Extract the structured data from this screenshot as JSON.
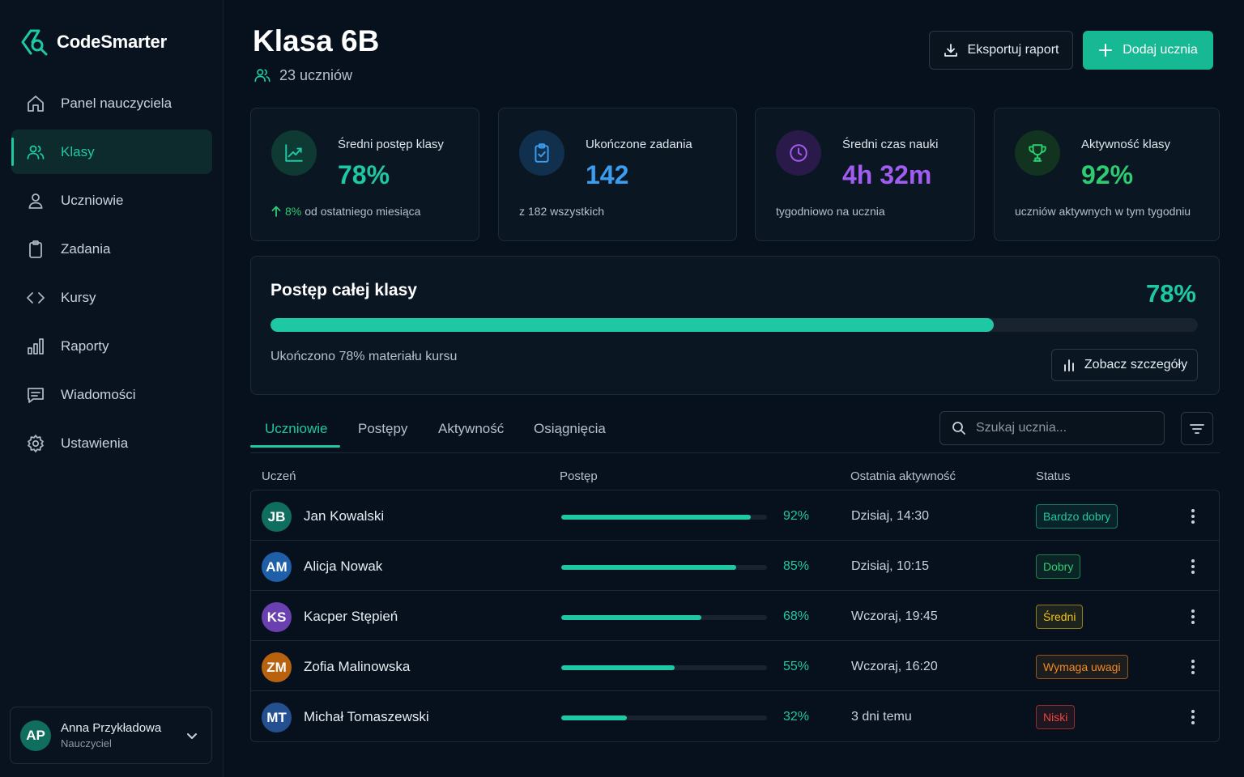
{
  "app": {
    "name": "CodeSmarter"
  },
  "sidebar": {
    "items": [
      {
        "label": "Panel nauczyciela",
        "icon": "home-icon"
      },
      {
        "label": "Klasy",
        "icon": "users-icon",
        "active": true
      },
      {
        "label": "Uczniowie",
        "icon": "user-icon"
      },
      {
        "label": "Zadania",
        "icon": "clipboard-icon"
      },
      {
        "label": "Kursy",
        "icon": "code-icon"
      },
      {
        "label": "Raporty",
        "icon": "bar-chart-icon"
      },
      {
        "label": "Wiadomości",
        "icon": "message-icon"
      },
      {
        "label": "Ustawienia",
        "icon": "gear-icon"
      }
    ],
    "user": {
      "initials": "AP",
      "name": "Anna Przykładowa",
      "role": "Nauczyciel"
    }
  },
  "header": {
    "title": "Klasa 6B",
    "student_count": "23 uczniów",
    "export_label": "Eksportuj raport",
    "add_label": "Dodaj ucznia"
  },
  "stats": [
    {
      "label": "Średni postęp klasy",
      "value": "78%",
      "delta": "8%",
      "foot": "od ostatniego miesiąca",
      "color": "#1fc8a4",
      "icon": "trend-up-icon"
    },
    {
      "label": "Ukończone zadania",
      "value": "142",
      "foot": "z 182 wszystkich",
      "color": "#3b9cf0",
      "icon": "clipboard-check-icon"
    },
    {
      "label": "Średni czas nauki",
      "value": "4h 32m",
      "foot": "tygodniowo na ucznia",
      "color": "#a15cf0",
      "icon": "clock-icon"
    },
    {
      "label": "Aktywność klasy",
      "value": "92%",
      "foot": "uczniów aktywnych w tym tygodniu",
      "color": "#2ecc71",
      "icon": "trophy-icon"
    }
  ],
  "progress": {
    "title": "Postęp całej klasy",
    "percent_label": "78%",
    "value": 0.78,
    "note": "Ukończono 78% materiału kursu",
    "details_label": "Zobacz szczegóły"
  },
  "tabs": [
    "Uczniowie",
    "Postępy",
    "Aktywność",
    "Osiągnięcia"
  ],
  "search": {
    "placeholder": "Szukaj ucznia..."
  },
  "table": {
    "headers": [
      "Uczeń",
      "Postęp",
      "Ostatnia aktywność",
      "Status"
    ],
    "rows": [
      {
        "initials": "JB",
        "name": "Jan Kowalski",
        "progress": 0.92,
        "pct": "92%",
        "last": "Dzisiaj, 14:30",
        "status": "Bardzo dobry",
        "status_color": "#1fc8a4",
        "avatar_color": "#0f6e5d"
      },
      {
        "initials": "AM",
        "name": "Alicja Nowak",
        "progress": 0.85,
        "pct": "85%",
        "last": "Dzisiaj, 10:15",
        "status": "Dobry",
        "status_color": "#2ecc71",
        "avatar_color": "#1f5fa8"
      },
      {
        "initials": "KS",
        "name": "Kacper Stępień",
        "progress": 0.68,
        "pct": "68%",
        "last": "Wczoraj, 19:45",
        "status": "Średni",
        "status_color": "#f0c419",
        "avatar_color": "#6a3fb0"
      },
      {
        "initials": "ZM",
        "name": "Zofia Malinowska",
        "progress": 0.55,
        "pct": "55%",
        "last": "Wczoraj, 16:20",
        "status": "Wymaga uwagi",
        "status_color": "#f08a24",
        "avatar_color": "#b8620f"
      },
      {
        "initials": "MT",
        "name": "Michał Tomaszewski",
        "progress": 0.32,
        "pct": "32%",
        "last": "3 dni temu",
        "status": "Niski",
        "status_color": "#f0463c",
        "avatar_color": "#24508f"
      }
    ]
  }
}
